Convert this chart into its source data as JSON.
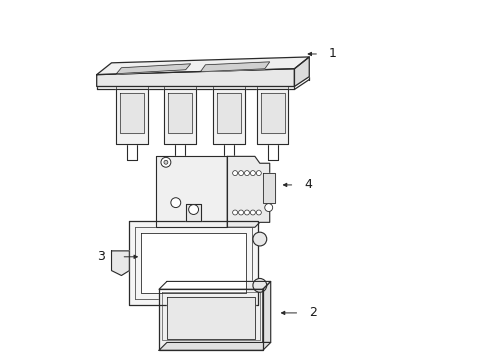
{
  "bg_color": "#ffffff",
  "line_color": "#2a2a2a",
  "text_color": "#1a1a1a",
  "label_fontsize": 9,
  "fig_width": 4.89,
  "fig_height": 3.6,
  "dpi": 100
}
